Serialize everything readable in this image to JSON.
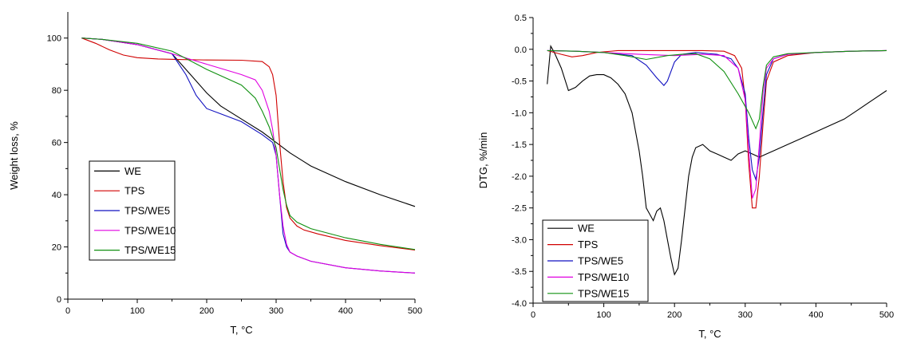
{
  "chart_data": [
    {
      "type": "line",
      "xlabel": "T, °C",
      "ylabel": "Weight loss, %",
      "xlim": [
        0,
        500
      ],
      "ylim": [
        0,
        110
      ],
      "xticks": [
        0,
        100,
        200,
        300,
        400,
        500
      ],
      "yticks": [
        0,
        20,
        40,
        60,
        80,
        100
      ],
      "grid": false,
      "legend_position": "bottom-left",
      "series": [
        {
          "name": "WE",
          "color": "#000000",
          "x": [
            20,
            50,
            100,
            150,
            180,
            200,
            220,
            250,
            280,
            300,
            320,
            350,
            400,
            450,
            500
          ],
          "y": [
            100,
            99.5,
            97.5,
            94,
            85,
            79,
            74,
            69,
            64,
            60,
            56,
            51,
            45,
            40,
            35.5
          ]
        },
        {
          "name": "TPS",
          "color": "#d00000",
          "x": [
            20,
            40,
            60,
            80,
            100,
            130,
            160,
            200,
            250,
            280,
            290,
            295,
            300,
            305,
            310,
            315,
            320,
            330,
            340,
            360,
            400,
            450,
            500
          ],
          "y": [
            100,
            98,
            95.5,
            93.5,
            92.5,
            92,
            91.8,
            91.6,
            91.5,
            91,
            89,
            86,
            78,
            60,
            45,
            35,
            31,
            28,
            26.5,
            25,
            22.5,
            20.5,
            18.8
          ]
        },
        {
          "name": "TPS/WE5",
          "color": "#1010c0",
          "x": [
            20,
            50,
            100,
            150,
            170,
            185,
            200,
            220,
            250,
            280,
            295,
            300,
            305,
            310,
            315,
            320,
            330,
            350,
            400,
            450,
            500
          ],
          "y": [
            100,
            99.5,
            97.5,
            94,
            86,
            78,
            73,
            71,
            68,
            63,
            60,
            55,
            40,
            25,
            20,
            18,
            16.5,
            14.5,
            12,
            10.8,
            10
          ]
        },
        {
          "name": "TPS/WE10",
          "color": "#e000e0",
          "x": [
            20,
            50,
            100,
            150,
            200,
            250,
            270,
            280,
            290,
            295,
            300,
            305,
            310,
            315,
            320,
            330,
            350,
            400,
            450,
            500
          ],
          "y": [
            100,
            99.5,
            97.5,
            94,
            90,
            86,
            84,
            80,
            72,
            65,
            55,
            40,
            28,
            21,
            18,
            16.5,
            14.5,
            12,
            10.8,
            10
          ]
        },
        {
          "name": "TPS/WE15",
          "color": "#109010",
          "x": [
            20,
            50,
            100,
            150,
            200,
            250,
            270,
            280,
            290,
            300,
            305,
            310,
            315,
            320,
            330,
            350,
            400,
            450,
            500
          ],
          "y": [
            100,
            99.5,
            98,
            95,
            88,
            82,
            77,
            72,
            66,
            58,
            50,
            42,
            36,
            32,
            29.5,
            27,
            23.5,
            21,
            19
          ]
        }
      ]
    },
    {
      "type": "line",
      "xlabel": "T, °C",
      "ylabel": "DTG, %/min",
      "xlim": [
        0,
        500
      ],
      "ylim": [
        -4.0,
        0.5
      ],
      "xticks": [
        0,
        100,
        200,
        300,
        400,
        500
      ],
      "yticks": [
        -4.0,
        -3.5,
        -3.0,
        -2.5,
        -2.0,
        -1.5,
        -1.0,
        -0.5,
        0.0,
        0.5
      ],
      "ytick_labels": [
        "-4.0",
        "-3.5",
        "-3.0",
        "-2.5",
        "-2.0",
        "-1.5",
        "-1.0",
        "-0.5",
        "0.0",
        "0.5"
      ],
      "grid": false,
      "legend_position": "bottom-left",
      "series": [
        {
          "name": "WE",
          "color": "#000000",
          "x": [
            20,
            25,
            30,
            40,
            50,
            60,
            70,
            80,
            90,
            100,
            110,
            120,
            130,
            140,
            150,
            155,
            160,
            165,
            170,
            175,
            180,
            185,
            190,
            195,
            200,
            205,
            210,
            215,
            220,
            225,
            230,
            240,
            250,
            260,
            270,
            280,
            290,
            300,
            310,
            320,
            330,
            340,
            350,
            360,
            380,
            400,
            420,
            440,
            460,
            480,
            500
          ],
          "y": [
            -0.55,
            0.05,
            -0.05,
            -0.3,
            -0.65,
            -0.6,
            -0.5,
            -0.42,
            -0.4,
            -0.4,
            -0.45,
            -0.55,
            -0.7,
            -1.0,
            -1.6,
            -2.0,
            -2.5,
            -2.6,
            -2.7,
            -2.55,
            -2.5,
            -2.7,
            -3.0,
            -3.3,
            -3.55,
            -3.45,
            -3.0,
            -2.5,
            -2.0,
            -1.7,
            -1.55,
            -1.5,
            -1.6,
            -1.65,
            -1.7,
            -1.75,
            -1.65,
            -1.6,
            -1.65,
            -1.7,
            -1.65,
            -1.6,
            -1.55,
            -1.5,
            -1.4,
            -1.3,
            -1.2,
            -1.1,
            -0.95,
            -0.8,
            -0.65
          ]
        },
        {
          "name": "TPS",
          "color": "#d00000",
          "x": [
            20,
            40,
            55,
            70,
            90,
            120,
            160,
            200,
            240,
            270,
            285,
            295,
            300,
            305,
            310,
            315,
            320,
            325,
            330,
            340,
            360,
            400,
            450,
            500
          ],
          "y": [
            -0.02,
            -0.08,
            -0.12,
            -0.1,
            -0.05,
            -0.02,
            -0.02,
            -0.02,
            -0.02,
            -0.03,
            -0.1,
            -0.3,
            -0.8,
            -1.8,
            -2.5,
            -2.5,
            -2.0,
            -1.2,
            -0.5,
            -0.2,
            -0.1,
            -0.05,
            -0.03,
            -0.02
          ]
        },
        {
          "name": "TPS/WE5",
          "color": "#1010c0",
          "x": [
            20,
            60,
            100,
            140,
            160,
            175,
            185,
            190,
            200,
            210,
            230,
            260,
            280,
            290,
            300,
            305,
            310,
            315,
            320,
            325,
            330,
            340,
            360,
            400,
            450,
            500
          ],
          "y": [
            -0.02,
            -0.03,
            -0.05,
            -0.1,
            -0.25,
            -0.45,
            -0.57,
            -0.5,
            -0.2,
            -0.08,
            -0.05,
            -0.08,
            -0.15,
            -0.3,
            -0.7,
            -1.4,
            -1.9,
            -2.05,
            -1.7,
            -1.0,
            -0.4,
            -0.15,
            -0.08,
            -0.05,
            -0.03,
            -0.02
          ]
        },
        {
          "name": "TPS/WE10",
          "color": "#e000e0",
          "x": [
            20,
            60,
            100,
            150,
            200,
            240,
            270,
            290,
            300,
            305,
            310,
            315,
            320,
            325,
            330,
            340,
            360,
            400,
            450,
            500
          ],
          "y": [
            -0.02,
            -0.03,
            -0.05,
            -0.08,
            -0.1,
            -0.08,
            -0.1,
            -0.3,
            -0.8,
            -1.6,
            -2.35,
            -2.2,
            -1.5,
            -0.7,
            -0.3,
            -0.15,
            -0.08,
            -0.05,
            -0.03,
            -0.02
          ]
        },
        {
          "name": "TPS/WE15",
          "color": "#109010",
          "x": [
            20,
            60,
            100,
            130,
            160,
            190,
            210,
            230,
            250,
            270,
            290,
            305,
            315,
            320,
            325,
            330,
            340,
            360,
            400,
            450,
            500
          ],
          "y": [
            -0.02,
            -0.03,
            -0.05,
            -0.1,
            -0.16,
            -0.1,
            -0.08,
            -0.07,
            -0.15,
            -0.35,
            -0.7,
            -1.0,
            -1.25,
            -1.1,
            -0.6,
            -0.25,
            -0.12,
            -0.07,
            -0.05,
            -0.03,
            -0.02
          ]
        }
      ]
    }
  ]
}
